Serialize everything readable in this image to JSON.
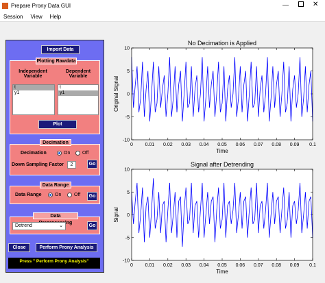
{
  "window": {
    "title": "Prepare Prony Data GUI"
  },
  "menu": [
    "Session",
    "View",
    "Help"
  ],
  "panel": {
    "import_button": "Import Data",
    "plotting": {
      "title": "Plotting Rawdata",
      "independent_label": "Independent Variable",
      "dependent_label": "Dependent Variable",
      "independent_items": [
        "t",
        "y1"
      ],
      "dependent_items": [
        "t",
        "y1"
      ],
      "plot_button": "Plot"
    },
    "decimation": {
      "title": "Decimation",
      "label": "Decimation",
      "on": "On",
      "off": "Off",
      "factor_label": "Down Sampling Factor",
      "factor_value": 2,
      "go": "Go"
    },
    "data_range": {
      "title": "Data Range",
      "label": "Data Range",
      "on": "On",
      "off": "Off",
      "go": "Go"
    },
    "preprocessing": {
      "title": "Data Preprocessing",
      "method": "Detrend",
      "go": "Go"
    },
    "close_button": "Close",
    "prony_button": "Perform Prony Analysis",
    "status": "Press \" Perform Prony Analysis\""
  },
  "chart_data": [
    {
      "type": "line",
      "title": "No Decimation is Applied",
      "xlabel": "Time",
      "ylabel": "Original Signal",
      "color": "#0000ff",
      "xlim": [
        0,
        0.1
      ],
      "ylim": [
        -10,
        10
      ],
      "xticks": [
        0,
        0.01,
        0.02,
        0.03,
        0.04,
        0.05,
        0.06,
        0.07,
        0.08,
        0.09,
        0.1
      ],
      "yticks": [
        -10,
        -5,
        0,
        5,
        10
      ],
      "x": [
        0,
        0.001,
        0.002,
        0.003,
        0.004,
        0.005,
        0.006,
        0.007,
        0.008,
        0.009,
        0.01,
        0.011,
        0.012,
        0.013,
        0.014,
        0.015,
        0.016,
        0.017,
        0.018,
        0.019,
        0.02,
        0.021,
        0.022,
        0.023,
        0.024,
        0.025,
        0.026,
        0.027,
        0.028,
        0.029,
        0.03,
        0.031,
        0.032,
        0.033,
        0.034,
        0.035,
        0.036,
        0.037,
        0.038,
        0.039,
        0.04,
        0.041,
        0.042,
        0.043,
        0.044,
        0.045,
        0.046,
        0.047,
        0.048,
        0.049,
        0.05,
        0.051,
        0.052,
        0.053,
        0.054,
        0.055,
        0.056,
        0.057,
        0.058,
        0.059,
        0.06,
        0.061,
        0.062,
        0.063,
        0.064,
        0.065,
        0.066,
        0.067,
        0.068,
        0.069,
        0.07,
        0.071,
        0.072,
        0.073,
        0.074,
        0.075,
        0.076,
        0.077,
        0.078,
        0.079,
        0.08,
        0.081,
        0.082,
        0.083,
        0.084,
        0.085,
        0.086,
        0.087,
        0.088,
        0.089,
        0.09,
        0.091,
        0.092,
        0.093,
        0.094,
        0.095,
        0.096,
        0.097,
        0.098,
        0.099,
        0.1
      ],
      "values": [
        8,
        -3,
        2,
        6,
        -4,
        -1,
        7,
        -5,
        1,
        5,
        -6,
        0,
        7,
        -4,
        -2,
        6,
        -3,
        1,
        4,
        -5,
        0,
        8,
        -5,
        -1,
        6,
        -4,
        2,
        5,
        -6,
        0,
        7,
        -3,
        -2,
        6,
        -5,
        1,
        4,
        -4,
        0,
        8,
        -6,
        -1,
        6,
        -3,
        2,
        5,
        -5,
        0,
        7,
        -4,
        -2,
        6,
        -6,
        1,
        4,
        -3,
        0,
        8,
        -5,
        -1,
        6,
        -4,
        2,
        5,
        -6,
        0,
        7,
        -3,
        -2,
        6,
        -5,
        1,
        4,
        -4,
        0,
        8,
        -6,
        -1,
        6,
        -3,
        2,
        5,
        -5,
        0,
        7,
        -4,
        -2,
        6,
        -6,
        1,
        4,
        -3,
        0,
        8,
        -5,
        -1,
        6,
        -4,
        2,
        5,
        -6
      ]
    },
    {
      "type": "line",
      "title": "Signal after Detrending",
      "xlabel": "Time",
      "ylabel": "Signal",
      "color": "#0000ff",
      "xlim": [
        0,
        0.1
      ],
      "ylim": [
        -10,
        10
      ],
      "xticks": [
        0,
        0.01,
        0.02,
        0.03,
        0.04,
        0.05,
        0.06,
        0.07,
        0.08,
        0.09,
        0.1
      ],
      "yticks": [
        -10,
        -5,
        0,
        5,
        10
      ],
      "x": [
        0,
        0.001,
        0.002,
        0.003,
        0.004,
        0.005,
        0.006,
        0.007,
        0.008,
        0.009,
        0.01,
        0.011,
        0.012,
        0.013,
        0.014,
        0.015,
        0.016,
        0.017,
        0.018,
        0.019,
        0.02,
        0.021,
        0.022,
        0.023,
        0.024,
        0.025,
        0.026,
        0.027,
        0.028,
        0.029,
        0.03,
        0.031,
        0.032,
        0.033,
        0.034,
        0.035,
        0.036,
        0.037,
        0.038,
        0.039,
        0.04,
        0.041,
        0.042,
        0.043,
        0.044,
        0.045,
        0.046,
        0.047,
        0.048,
        0.049,
        0.05,
        0.051,
        0.052,
        0.053,
        0.054,
        0.055,
        0.056,
        0.057,
        0.058,
        0.059,
        0.06,
        0.061,
        0.062,
        0.063,
        0.064,
        0.065,
        0.066,
        0.067,
        0.068,
        0.069,
        0.07,
        0.071,
        0.072,
        0.073,
        0.074,
        0.075,
        0.076,
        0.077,
        0.078,
        0.079,
        0.08,
        0.081,
        0.082,
        0.083,
        0.084,
        0.085,
        0.086,
        0.087,
        0.088,
        0.089,
        0.09,
        0.091,
        0.092,
        0.093,
        0.094,
        0.095,
        0.096,
        0.097,
        0.098,
        0.099,
        0.1
      ],
      "values": [
        5,
        -2,
        3,
        7,
        -4,
        0,
        6,
        -6,
        2,
        4,
        -5,
        1,
        8,
        -3,
        -1,
        5,
        -4,
        2,
        3,
        -6,
        1,
        7,
        -4,
        0,
        5,
        -5,
        3,
        4,
        -7,
        1,
        6,
        -2,
        -1,
        7,
        -4,
        2,
        3,
        -5,
        1,
        7,
        -5,
        0,
        5,
        -2,
        3,
        4,
        -6,
        1,
        6,
        -3,
        -1,
        7,
        -5,
        2,
        3,
        -2,
        1,
        7,
        -4,
        0,
        5,
        -3,
        3,
        4,
        -5,
        1,
        6,
        -2,
        -1,
        7,
        -4,
        2,
        3,
        -3,
        1,
        7,
        -5,
        0,
        5,
        -2,
        3,
        4,
        -4,
        1,
        6,
        -3,
        -1,
        5,
        -5,
        2,
        3,
        -2,
        1,
        7,
        -4,
        0,
        5,
        -3,
        3,
        4,
        -5
      ]
    }
  ]
}
